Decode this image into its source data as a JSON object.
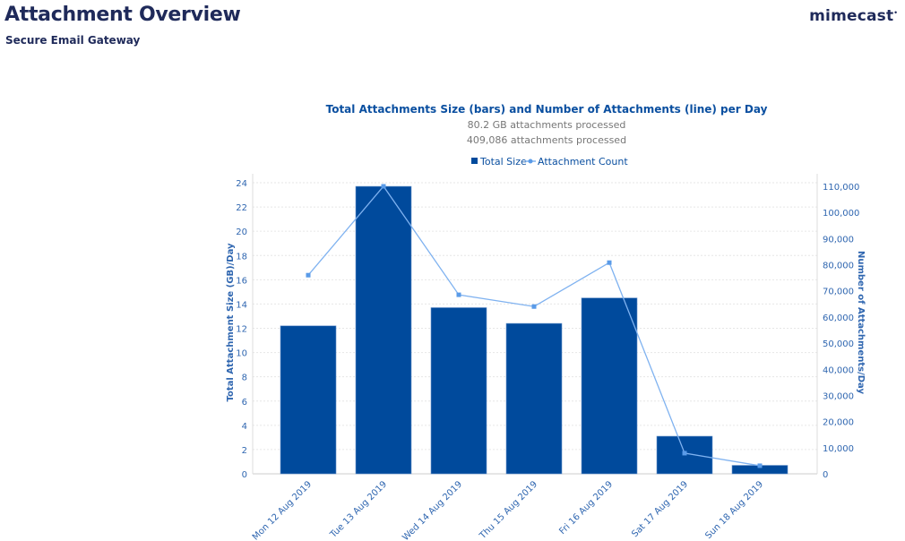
{
  "header": {
    "title": "Attachment Overview",
    "subtitle": "Secure Email Gateway",
    "logo": "mimecast"
  },
  "chart_data": {
    "type": "bar+line",
    "title": "Total Attachments Size (bars) and Number of Attachments (line) per Day",
    "subtitles": [
      "80.2 GB attachments processed",
      "409,086 attachments processed"
    ],
    "categories": [
      "Mon 12 Aug 2019",
      "Tue 13 Aug 2019",
      "Wed 14 Aug 2019",
      "Thu 15 Aug 2019",
      "Fri 16 Aug 2019",
      "Sat 17 Aug 2019",
      "Sun 18 Aug 2019"
    ],
    "series": [
      {
        "name": "Total Size",
        "type": "bar",
        "axis": "left",
        "color": "#004a9c",
        "values": [
          12.2,
          23.7,
          13.7,
          12.4,
          14.5,
          3.1,
          0.7
        ]
      },
      {
        "name": "Attachment Count",
        "type": "line",
        "axis": "right",
        "color": "#7fb2f0",
        "values": [
          76000,
          110000,
          68500,
          64000,
          80800,
          7900,
          3100
        ]
      }
    ],
    "ylabel": "Total Attachment Size (GB)/Day",
    "y2label": "Number of Attachments/Day",
    "ylim": [
      0,
      24
    ],
    "yticks": [
      0,
      2,
      4,
      6,
      8,
      10,
      12,
      14,
      16,
      18,
      20,
      22,
      24
    ],
    "y2lim": [
      0,
      110000
    ],
    "y2ticks": [
      "0",
      "10,000",
      "20,000",
      "30,000",
      "40,000",
      "50,000",
      "60,000",
      "70,000",
      "80,000",
      "90,000",
      "100,000",
      "110,000"
    ],
    "grid": true,
    "legend": "top"
  }
}
